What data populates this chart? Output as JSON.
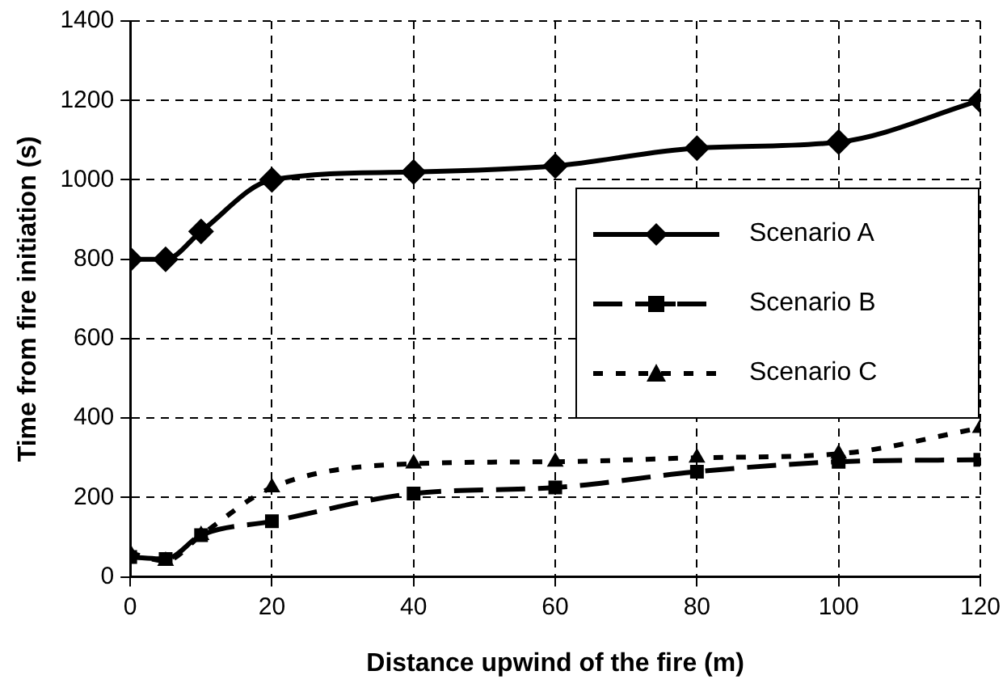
{
  "chart_data": {
    "type": "line",
    "xlabel": "Distance upwind of the fire (m)",
    "ylabel": "Time from fire initiation (s)",
    "x": [
      0,
      5,
      10,
      20,
      40,
      60,
      80,
      100,
      120
    ],
    "xlim": [
      0,
      120
    ],
    "xticks": [
      0,
      20,
      40,
      60,
      80,
      100,
      120
    ],
    "ylim": [
      0,
      1400
    ],
    "yticks": [
      0,
      200,
      400,
      600,
      800,
      1000,
      1200,
      1400
    ],
    "grid": true,
    "legend": "right",
    "series": [
      {
        "name": "Scenario A",
        "color": "#000000",
        "marker": "diamond",
        "line_style": "solid",
        "values": [
          800,
          800,
          870,
          1000,
          1020,
          1035,
          1080,
          1095,
          1200
        ]
      },
      {
        "name": "Scenario B",
        "color": "#000000",
        "marker": "square",
        "line_style": "dashed",
        "values": [
          50,
          45,
          105,
          140,
          210,
          225,
          265,
          290,
          295
        ]
      },
      {
        "name": "Scenario C",
        "color": "#000000",
        "marker": "triangle",
        "line_style": "dotted",
        "values": [
          60,
          40,
          105,
          225,
          285,
          290,
          300,
          310,
          375
        ]
      }
    ]
  }
}
